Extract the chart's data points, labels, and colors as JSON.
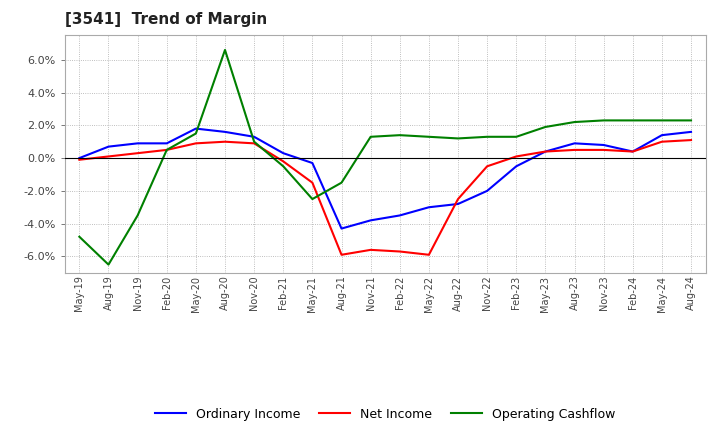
{
  "title": "[3541]  Trend of Margin",
  "x_labels": [
    "May-19",
    "Aug-19",
    "Nov-19",
    "Feb-20",
    "May-20",
    "Aug-20",
    "Nov-20",
    "Feb-21",
    "May-21",
    "Aug-21",
    "Nov-21",
    "Feb-22",
    "May-22",
    "Aug-22",
    "Nov-22",
    "Feb-23",
    "May-23",
    "Aug-23",
    "Nov-23",
    "Feb-24",
    "May-24",
    "Aug-24"
  ],
  "ordinary_income": [
    0.0,
    0.7,
    0.9,
    0.9,
    1.8,
    1.6,
    1.3,
    0.3,
    -0.3,
    -4.3,
    -3.8,
    -3.5,
    -3.0,
    -2.8,
    -2.0,
    -0.5,
    0.4,
    0.9,
    0.8,
    0.4,
    1.4,
    1.6
  ],
  "net_income": [
    -0.1,
    0.1,
    0.3,
    0.5,
    0.9,
    1.0,
    0.9,
    -0.2,
    -1.5,
    -5.9,
    -5.6,
    -5.7,
    -5.9,
    -2.5,
    -0.5,
    0.1,
    0.4,
    0.5,
    0.5,
    0.4,
    1.0,
    1.1
  ],
  "operating_cashflow": [
    -4.8,
    -6.5,
    -3.5,
    0.5,
    1.5,
    6.6,
    1.0,
    -0.5,
    -2.5,
    -1.5,
    1.3,
    1.4,
    1.3,
    1.2,
    1.3,
    1.3,
    1.9,
    2.2,
    2.3,
    2.3,
    2.3,
    2.3
  ],
  "ordinary_color": "#0000ff",
  "net_income_color": "#ff0000",
  "operating_cashflow_color": "#008000",
  "ylim": [
    -7.0,
    7.5
  ],
  "yticks": [
    -6.0,
    -4.0,
    -2.0,
    0.0,
    2.0,
    4.0,
    6.0
  ],
  "background_color": "#ffffff",
  "grid_color": "#aaaaaa",
  "legend_labels": [
    "Ordinary Income",
    "Net Income",
    "Operating Cashflow"
  ]
}
